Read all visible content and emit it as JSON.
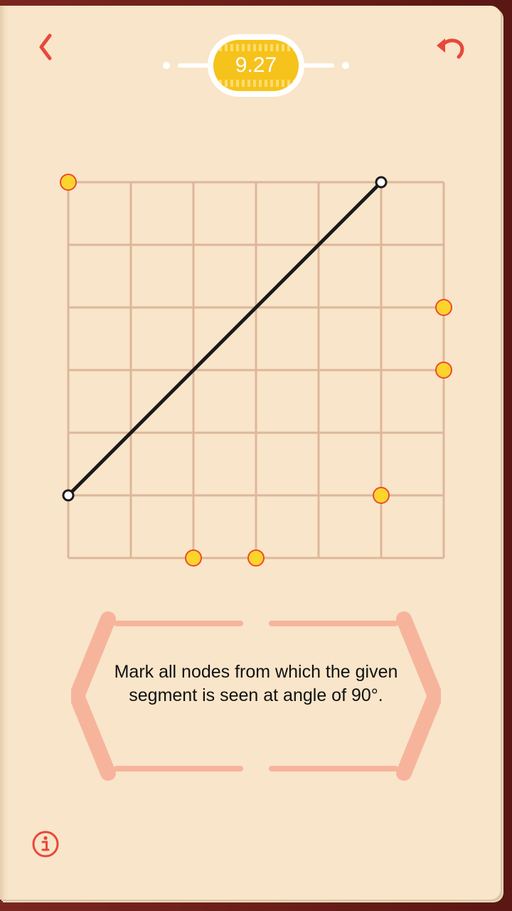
{
  "header": {
    "back_icon": "chevron-left-icon",
    "undo_icon": "undo-arrow-icon",
    "score": "9.27",
    "accent_color": "#e8483b",
    "badge_color": "#f6c21c"
  },
  "puzzle": {
    "grid_columns": 6,
    "grid_rows": 6,
    "segment": {
      "from": [
        0,
        5
      ],
      "to": [
        5,
        0
      ]
    },
    "marked_nodes": [
      [
        0,
        0
      ],
      [
        6,
        2
      ],
      [
        6,
        3
      ],
      [
        5,
        5
      ],
      [
        2,
        6
      ],
      [
        3,
        6
      ]
    ],
    "grid_color": "#ddb79a",
    "node_color": "#fbd52c",
    "node_border_color": "#ee4a2c"
  },
  "hint": {
    "text": "Mark all nodes from which the given segment is seen at angle of 90°."
  },
  "footer": {
    "info_icon": "info-icon"
  }
}
